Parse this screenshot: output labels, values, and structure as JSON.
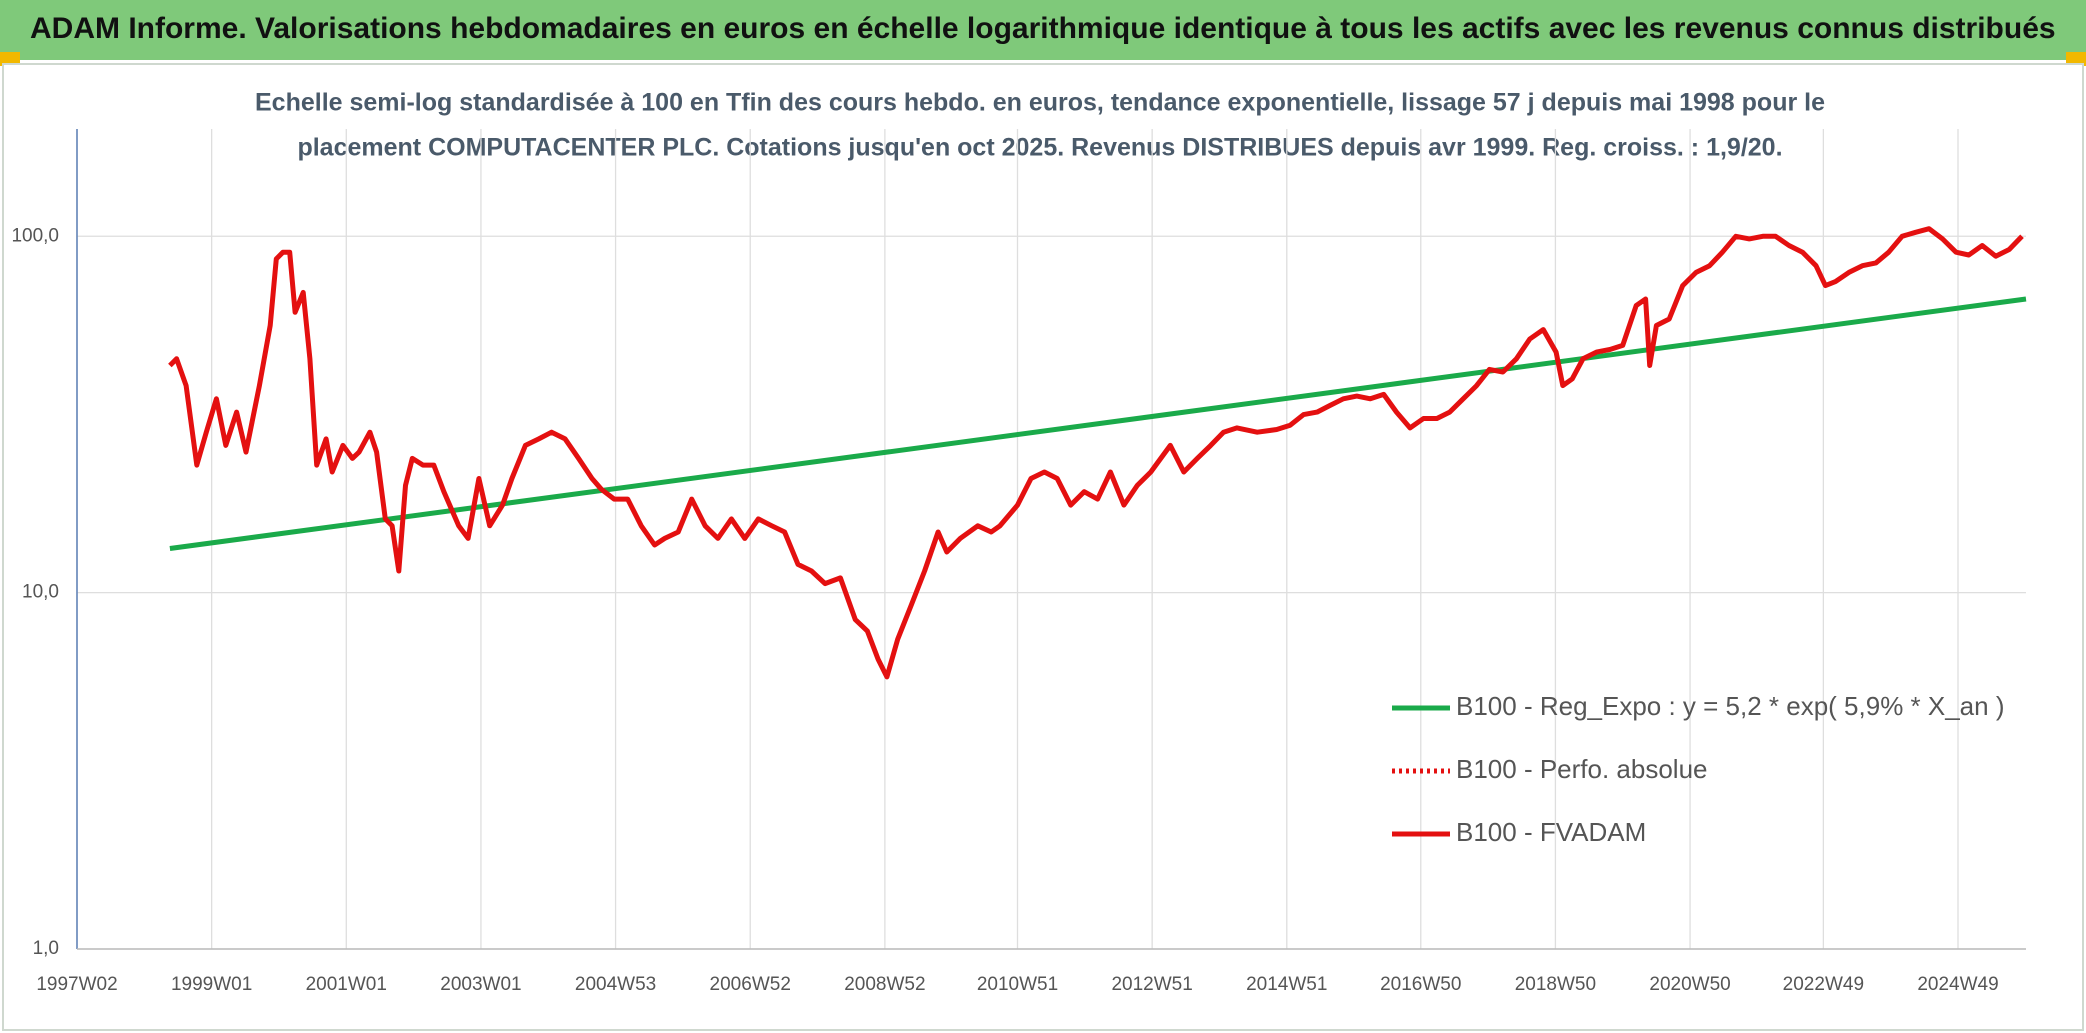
{
  "header": {
    "title": "ADAM Informe. Valorisations hebdomadaires en euros en échelle logarithmique identique à tous les actifs avec les revenus connus distribués"
  },
  "chart_data": {
    "type": "line",
    "title": [
      "Echelle semi-log standardisée à 100 en Tfin des cours hebdo. en euros, tendance exponentielle, lissage 57 j depuis mai 1998 pour le",
      "placement COMPUTACENTER PLC. Cotations jusqu'en oct 2025. Revenus DISTRIBUES depuis avr 1999. Reg. croiss. : 1,9/20."
    ],
    "log_y": true,
    "grid": true,
    "xlim": [
      1997.0,
      2025.95
    ],
    "xticks": [
      {
        "value": 1997.0,
        "label": "1997W02"
      },
      {
        "value": 1999.0,
        "label": "1999W01"
      },
      {
        "value": 2001.0,
        "label": "2001W01"
      },
      {
        "value": 2003.0,
        "label": "2003W01"
      },
      {
        "value": 2005.0,
        "label": "2004W53"
      },
      {
        "value": 2007.0,
        "label": "2006W52"
      },
      {
        "value": 2009.0,
        "label": "2008W52"
      },
      {
        "value": 2010.97,
        "label": "2010W51"
      },
      {
        "value": 2012.97,
        "label": "2012W51"
      },
      {
        "value": 2014.97,
        "label": "2014W51"
      },
      {
        "value": 2016.96,
        "label": "2016W50"
      },
      {
        "value": 2018.96,
        "label": "2018W50"
      },
      {
        "value": 2020.96,
        "label": "2020W50"
      },
      {
        "value": 2022.94,
        "label": "2022W49"
      },
      {
        "value": 2024.94,
        "label": "2024W49"
      }
    ],
    "ylim": [
      1,
      200
    ],
    "yticks": [
      {
        "value": 1,
        "label": "1,0"
      },
      {
        "value": 10,
        "label": "10,0"
      },
      {
        "value": 100,
        "label": "100,0"
      }
    ],
    "legend_position": "lower right",
    "series": [
      {
        "name": "B100 - Reg_Expo : y = 5,2 * exp( 5,9% *  X_an )",
        "color": "#1aaa4a",
        "style": "solid",
        "x": [
          1998.38,
          2025.95
        ],
        "values": [
          13.3,
          66.7
        ]
      },
      {
        "name": "B100 - Perfo. absolue",
        "color": "#e41010",
        "style": "dotted"
      },
      {
        "name": "B100 - FVADAM",
        "color": "#e41010",
        "style": "solid",
        "x": [
          1998.38,
          1998.48,
          1998.62,
          1998.78,
          1998.92,
          1999.07,
          1999.21,
          1999.37,
          1999.51,
          1999.71,
          1999.87,
          1999.96,
          2000.06,
          2000.16,
          2000.24,
          2000.36,
          2000.46,
          2000.56,
          2000.7,
          2000.79,
          2000.95,
          2001.09,
          2001.19,
          2001.35,
          2001.45,
          2001.58,
          2001.68,
          2001.78,
          2001.88,
          2001.98,
          2002.14,
          2002.3,
          2002.45,
          2002.67,
          2002.81,
          2002.97,
          2003.13,
          2003.32,
          2003.46,
          2003.66,
          2003.86,
          2004.05,
          2004.25,
          2004.45,
          2004.65,
          2004.79,
          2004.98,
          2005.18,
          2005.38,
          2005.58,
          2005.73,
          2005.93,
          2006.13,
          2006.33,
          2006.52,
          2006.72,
          2006.92,
          2007.12,
          2007.32,
          2007.51,
          2007.71,
          2007.91,
          2008.11,
          2008.34,
          2008.56,
          2008.74,
          2008.9,
          2009.03,
          2009.19,
          2009.39,
          2009.59,
          2009.79,
          2009.92,
          2010.12,
          2010.38,
          2010.58,
          2010.71,
          2010.97,
          2011.17,
          2011.37,
          2011.56,
          2011.76,
          2011.96,
          2012.16,
          2012.35,
          2012.55,
          2012.75,
          2012.95,
          2013.24,
          2013.44,
          2013.64,
          2013.84,
          2014.03,
          2014.23,
          2014.53,
          2014.82,
          2015.02,
          2015.22,
          2015.42,
          2015.61,
          2015.81,
          2016.01,
          2016.21,
          2016.41,
          2016.6,
          2016.8,
          2017.0,
          2017.2,
          2017.39,
          2017.59,
          2017.79,
          2017.98,
          2018.18,
          2018.38,
          2018.58,
          2018.78,
          2018.97,
          2019.07,
          2019.21,
          2019.37,
          2019.57,
          2019.77,
          2019.96,
          2020.16,
          2020.3,
          2020.36,
          2020.46,
          2020.65,
          2020.85,
          2021.05,
          2021.25,
          2021.44,
          2021.64,
          2021.84,
          2022.04,
          2022.23,
          2022.43,
          2022.63,
          2022.83,
          2022.97,
          2023.12,
          2023.32,
          2023.52,
          2023.72,
          2023.91,
          2024.11,
          2024.31,
          2024.51,
          2024.71,
          2024.91,
          2025.1,
          2025.3,
          2025.5,
          2025.7,
          2025.89
        ],
        "values": [
          43.4,
          45.3,
          38.1,
          22.8,
          28.2,
          35.0,
          25.9,
          32.1,
          24.8,
          38.1,
          56.2,
          86.4,
          90.2,
          90.2,
          61.2,
          69.6,
          45.3,
          22.8,
          27.0,
          21.8,
          25.9,
          23.8,
          24.8,
          28.2,
          24.8,
          16.1,
          15.4,
          11.5,
          20.0,
          23.8,
          22.8,
          22.8,
          19.2,
          15.4,
          14.2,
          20.9,
          15.4,
          17.6,
          20.9,
          25.9,
          27.0,
          28.2,
          27.0,
          23.8,
          20.9,
          19.5,
          18.3,
          18.3,
          15.4,
          13.6,
          14.2,
          14.8,
          18.3,
          15.4,
          14.2,
          16.1,
          14.2,
          16.1,
          15.4,
          14.8,
          12.0,
          11.5,
          10.6,
          11.0,
          8.4,
          7.8,
          6.5,
          5.8,
          7.4,
          9.2,
          11.5,
          14.8,
          13.0,
          14.2,
          15.4,
          14.8,
          15.4,
          17.6,
          20.9,
          21.8,
          20.9,
          17.6,
          19.2,
          18.3,
          21.8,
          17.6,
          20.0,
          21.8,
          25.9,
          21.8,
          23.8,
          25.9,
          28.2,
          29.0,
          28.2,
          28.7,
          29.5,
          31.6,
          32.1,
          33.5,
          35.0,
          35.6,
          35.0,
          36.0,
          32.1,
          29.0,
          30.8,
          30.8,
          32.1,
          35.0,
          38.1,
          42.3,
          41.6,
          45.3,
          51.5,
          54.7,
          47.3,
          38.1,
          39.8,
          45.3,
          47.3,
          48.1,
          49.4,
          63.9,
          66.7,
          43.4,
          56.2,
          58.6,
          72.7,
          79.2,
          82.7,
          90.2,
          100,
          98.3,
          100,
          100,
          94.2,
          90.2,
          82.7,
          72.7,
          74.6,
          79.2,
          82.7,
          84.2,
          90.2,
          100,
          102.6,
          105,
          98.3,
          90.2,
          88.6,
          94.2,
          87.9,
          91.8,
          100
        ]
      }
    ]
  }
}
